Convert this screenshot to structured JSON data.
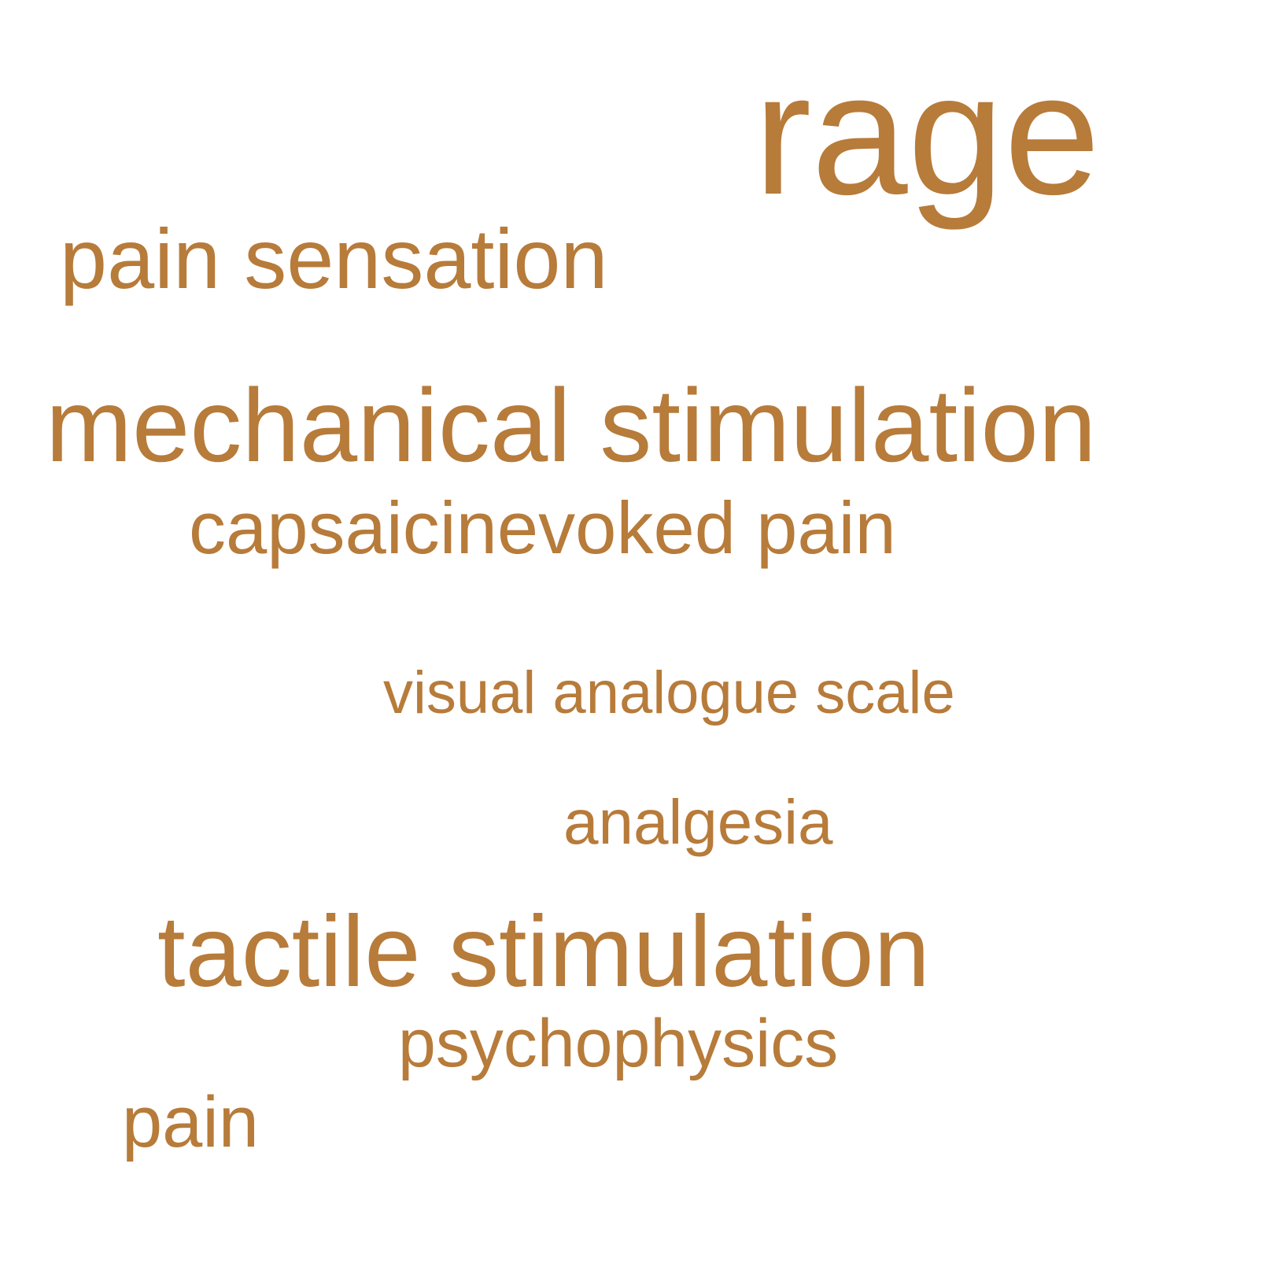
{
  "word_cloud": {
    "color": "#b77b3a",
    "words": [
      {
        "id": "rage",
        "text": "rage"
      },
      {
        "id": "pain_sensation",
        "text": "pain sensation"
      },
      {
        "id": "mechanical_stimulation",
        "text": "mechanical stimulation"
      },
      {
        "id": "capsaicinevoked_pain",
        "text": "capsaicinevoked pain"
      },
      {
        "id": "visual_analogue_scale",
        "text": "visual analogue scale"
      },
      {
        "id": "analgesia",
        "text": "analgesia"
      },
      {
        "id": "tactile_stimulation",
        "text": "tactile stimulation"
      },
      {
        "id": "psychophysics",
        "text": "psychophysics"
      },
      {
        "id": "pain",
        "text": "pain"
      }
    ]
  }
}
